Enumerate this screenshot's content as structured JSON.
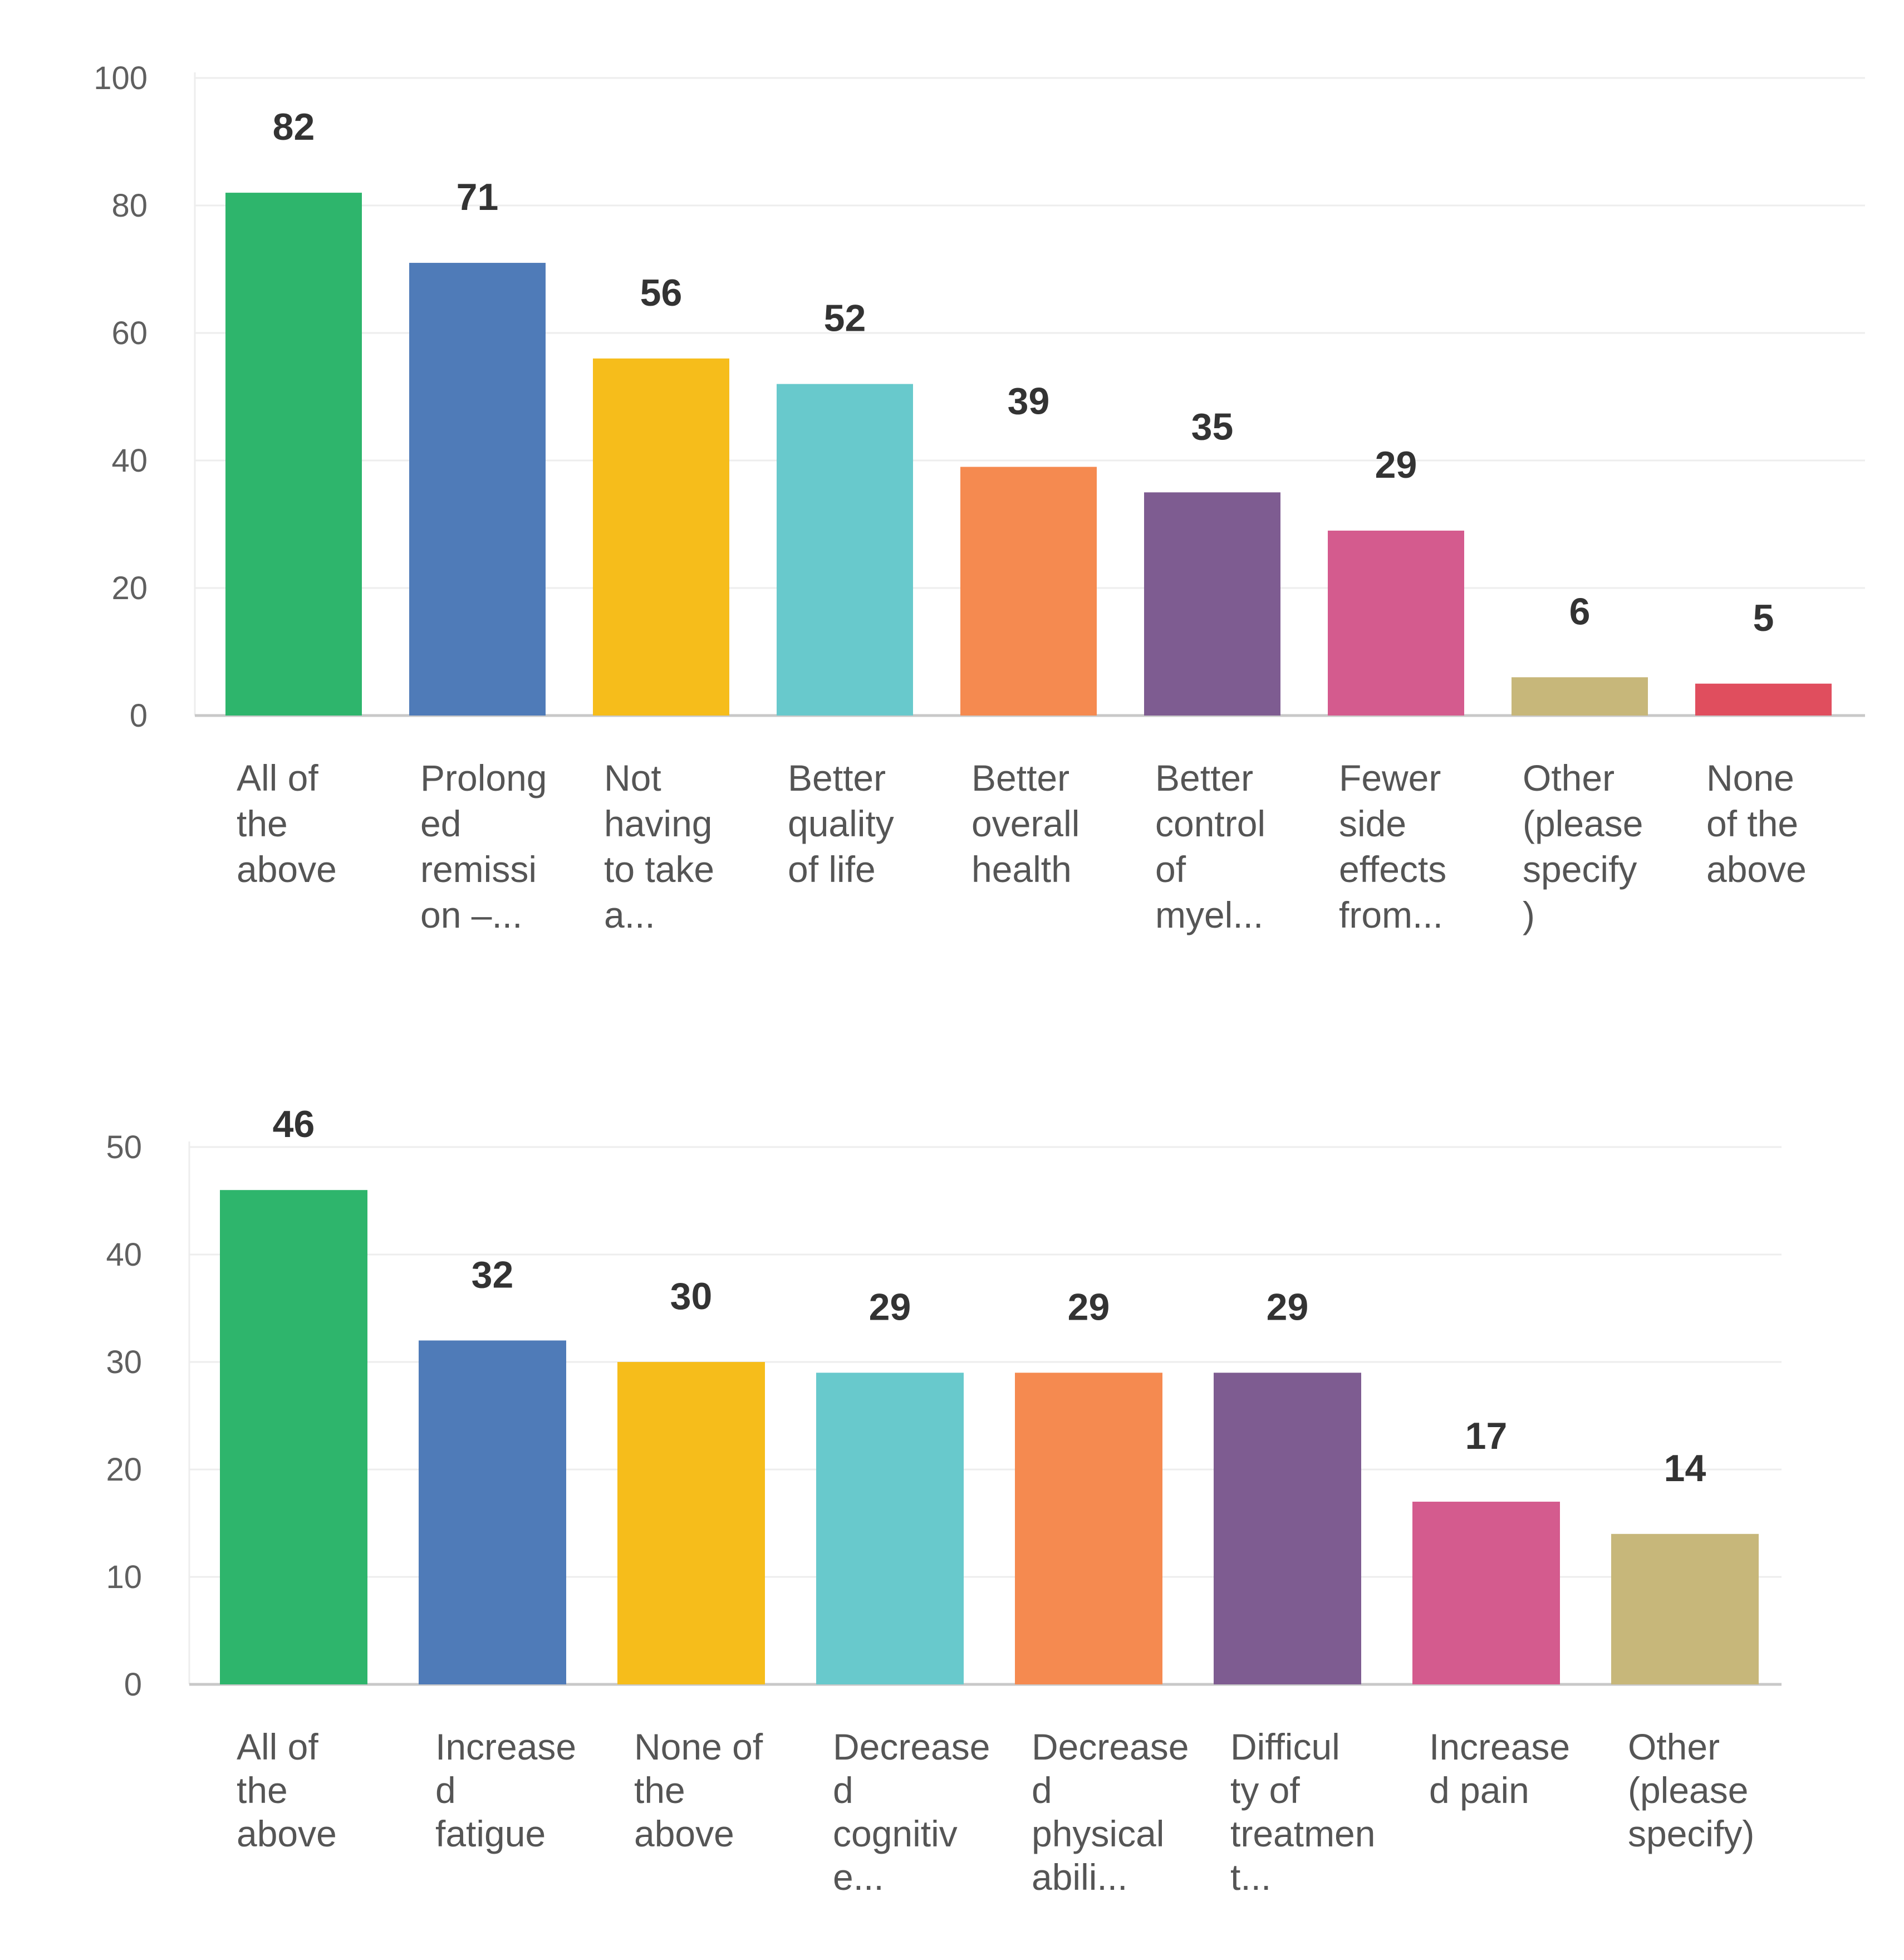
{
  "chart_data": [
    {
      "type": "bar",
      "title": "",
      "xlabel": "",
      "ylabel": "",
      "ylim": [
        0,
        100
      ],
      "yticks": [
        0,
        20,
        40,
        60,
        80,
        100
      ],
      "categories": [
        "All of the above",
        "Prolonged remission –...",
        "Not having to take a...",
        "Better quality of life",
        "Better overall health",
        "Better control of myel...",
        "Fewer side effects from...",
        "Other (please specify)",
        "None of the above"
      ],
      "category_lines": [
        [
          "All of",
          "the",
          "above"
        ],
        [
          "Prolong",
          "ed",
          "remissi",
          "on –..."
        ],
        [
          "Not",
          "having",
          "to take",
          "a..."
        ],
        [
          "Better",
          "quality",
          "of life"
        ],
        [
          "Better",
          "overall",
          "health"
        ],
        [
          "Better",
          "control",
          "of",
          "myel..."
        ],
        [
          "Fewer",
          "side",
          "effects",
          "from..."
        ],
        [
          "Other",
          "(please",
          "specify",
          ")"
        ],
        [
          "None",
          "of the",
          "above"
        ]
      ],
      "values": [
        82,
        71,
        56,
        52,
        39,
        35,
        29,
        6,
        5
      ],
      "colors": [
        "#2eb56c",
        "#4f7bb8",
        "#f6bd1b",
        "#68c9cc",
        "#f58a50",
        "#7e5c91",
        "#d45b8e",
        "#c7b77a",
        "#e04e5e"
      ]
    },
    {
      "type": "bar",
      "title": "",
      "xlabel": "",
      "ylabel": "",
      "ylim": [
        0,
        50
      ],
      "yticks": [
        0,
        10,
        20,
        30,
        40,
        50
      ],
      "categories": [
        "All of the above",
        "Increased fatigue",
        "None of the above",
        "Decreased cognitive...",
        "Decreased physical abili...",
        "Difficulty of treatment...",
        "Increased pain",
        "Other (please specify)"
      ],
      "category_lines": [
        [
          "All of",
          "the",
          "above"
        ],
        [
          "Increase",
          "d",
          "fatigue"
        ],
        [
          "None of",
          "the",
          "above"
        ],
        [
          "Decrease",
          "d",
          "cognitiv",
          "e..."
        ],
        [
          "Decrease",
          "d",
          "physical",
          "abili..."
        ],
        [
          "Difficul",
          "ty of",
          "treatmen",
          "t..."
        ],
        [
          "Increase",
          "d pain"
        ],
        [
          "Other",
          "(please",
          "specify)"
        ]
      ],
      "values": [
        46,
        32,
        30,
        29,
        29,
        29,
        17,
        14
      ],
      "colors": [
        "#2eb56c",
        "#4f7bb8",
        "#f6bd1b",
        "#68c9cc",
        "#f58a50",
        "#7e5c91",
        "#d45b8e",
        "#c7b77a"
      ]
    }
  ]
}
